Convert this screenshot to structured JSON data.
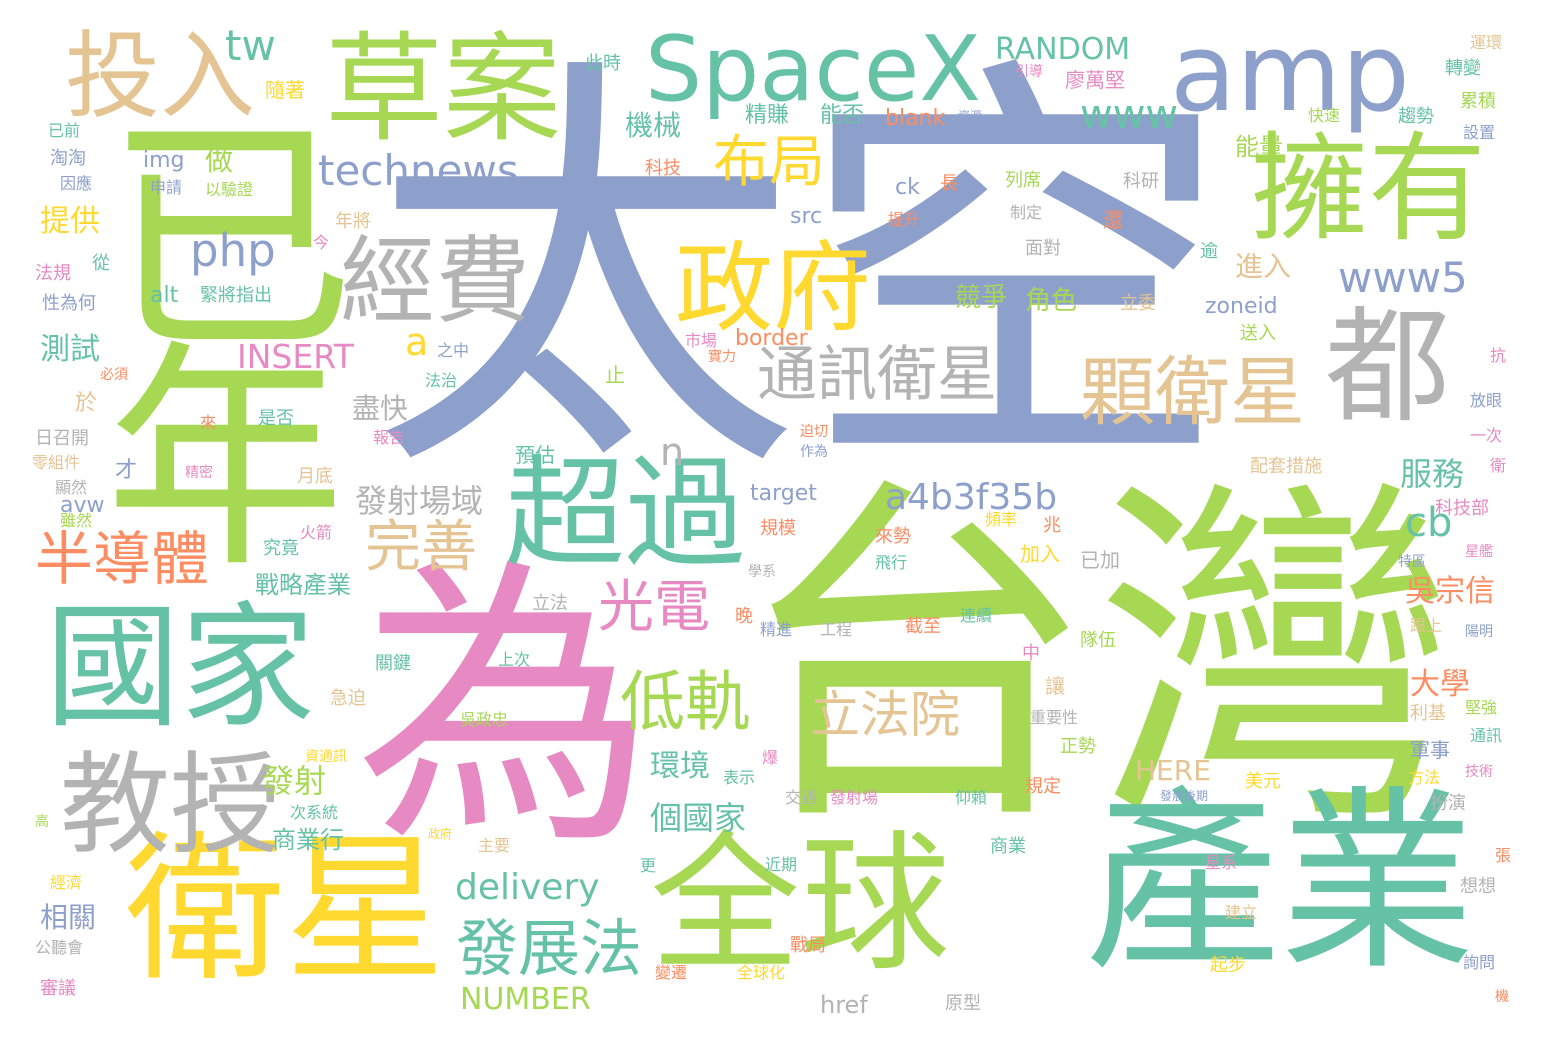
{
  "palette": {
    "green": "#a6d854",
    "teal": "#66c2a5",
    "blue": "#8da0cb",
    "pink": "#e78ac3",
    "yellow": "#ffd92f",
    "tan": "#e5c494",
    "gray": "#b3b3b3",
    "orange": "#fc8d62"
  },
  "words": [
    {
      "text": "太空",
      "color": "blue"
    },
    {
      "text": "台灣",
      "color": "green"
    },
    {
      "text": "已",
      "color": "green"
    },
    {
      "text": "年",
      "color": "green"
    },
    {
      "text": "為",
      "color": "pink"
    },
    {
      "text": "產業",
      "color": "teal"
    },
    {
      "text": "全球",
      "color": "green"
    },
    {
      "text": "衛星",
      "color": "yellow"
    },
    {
      "text": "國家",
      "color": "teal"
    },
    {
      "text": "amp",
      "color": "blue"
    },
    {
      "text": "草案",
      "color": "green"
    },
    {
      "text": "SpaceX",
      "color": "teal"
    },
    {
      "text": "擁有",
      "color": "green"
    },
    {
      "text": "都",
      "color": "gray"
    },
    {
      "text": "超過",
      "color": "teal"
    },
    {
      "text": "教授",
      "color": "gray"
    },
    {
      "text": "投入",
      "color": "tan"
    },
    {
      "text": "經費",
      "color": "gray"
    },
    {
      "text": "政府",
      "color": "yellow"
    },
    {
      "text": "顆衛星",
      "color": "tan"
    },
    {
      "text": "通訊衛星",
      "color": "gray"
    },
    {
      "text": "立法院",
      "color": "tan"
    },
    {
      "text": "低軌",
      "color": "green"
    },
    {
      "text": "發展法",
      "color": "teal"
    },
    {
      "text": "半導體",
      "color": "orange"
    },
    {
      "text": "完善",
      "color": "tan"
    },
    {
      "text": "光電",
      "color": "pink"
    },
    {
      "text": "布局",
      "color": "yellow"
    },
    {
      "text": "technews",
      "color": "blue"
    },
    {
      "text": "www5",
      "color": "blue"
    },
    {
      "text": "php",
      "color": "blue"
    },
    {
      "text": "a4b3f35b",
      "color": "blue"
    },
    {
      "text": "delivery",
      "color": "teal"
    },
    {
      "text": "www",
      "color": "teal"
    },
    {
      "text": "tw",
      "color": "teal"
    },
    {
      "text": "INSERT",
      "color": "pink"
    },
    {
      "text": "a",
      "color": "yellow"
    },
    {
      "text": "RANDOM",
      "color": "teal"
    },
    {
      "text": "NUMBER",
      "color": "green"
    },
    {
      "text": "HERE",
      "color": "tan"
    },
    {
      "text": "cb",
      "color": "teal"
    },
    {
      "text": "n",
      "color": "gray"
    },
    {
      "text": "zoneid",
      "color": "blue"
    },
    {
      "text": "個國家",
      "color": "teal"
    },
    {
      "text": "環境",
      "color": "teal"
    },
    {
      "text": "服務",
      "color": "teal"
    },
    {
      "text": "大學",
      "color": "orange"
    },
    {
      "text": "吳宗信",
      "color": "orange"
    },
    {
      "text": "進入",
      "color": "tan"
    },
    {
      "text": "發射場域",
      "color": "gray"
    },
    {
      "text": "發射",
      "color": "green"
    },
    {
      "text": "盡快",
      "color": "gray"
    },
    {
      "text": "提供",
      "color": "yellow"
    },
    {
      "text": "測試",
      "color": "teal"
    },
    {
      "text": "相關",
      "color": "blue"
    },
    {
      "text": "做",
      "color": "green"
    },
    {
      "text": "角色",
      "color": "green"
    },
    {
      "text": "競爭",
      "color": "green"
    },
    {
      "text": "商業行",
      "color": "teal"
    },
    {
      "text": "戰略產業",
      "color": "teal"
    },
    {
      "text": "機械",
      "color": "teal"
    },
    {
      "text": "能量",
      "color": "green"
    },
    {
      "text": "精賺",
      "color": "teal"
    },
    {
      "text": "能否",
      "color": "teal"
    },
    {
      "text": "blank",
      "color": "orange"
    },
    {
      "text": "img",
      "color": "blue"
    },
    {
      "text": "src",
      "color": "blue"
    },
    {
      "text": "alt",
      "color": "teal"
    },
    {
      "text": "ck",
      "color": "blue"
    },
    {
      "text": "border",
      "color": "orange"
    },
    {
      "text": "target",
      "color": "blue"
    },
    {
      "text": "avw",
      "color": "blue"
    },
    {
      "text": "href",
      "color": "gray"
    },
    {
      "text": "此時",
      "color": "teal"
    },
    {
      "text": "隨著",
      "color": "yellow"
    },
    {
      "text": "廖萬堅",
      "color": "pink"
    },
    {
      "text": "引導",
      "color": "pink"
    },
    {
      "text": "運環",
      "color": "tan"
    },
    {
      "text": "轉變",
      "color": "teal"
    },
    {
      "text": "累積",
      "color": "green"
    },
    {
      "text": "趨勢",
      "color": "teal"
    },
    {
      "text": "快速",
      "color": "green"
    },
    {
      "text": "設置",
      "color": "blue"
    },
    {
      "text": "已前",
      "color": "teal"
    },
    {
      "text": "淘淘",
      "color": "blue"
    },
    {
      "text": "因應",
      "color": "blue"
    },
    {
      "text": "申請",
      "color": "blue"
    },
    {
      "text": "以驗證",
      "color": "green"
    },
    {
      "text": "科技",
      "color": "orange"
    },
    {
      "text": "科研",
      "color": "gray"
    },
    {
      "text": "列席",
      "color": "green"
    },
    {
      "text": "提升",
      "color": "orange"
    },
    {
      "text": "制定",
      "color": "gray"
    },
    {
      "text": "還",
      "color": "orange"
    },
    {
      "text": "面對",
      "color": "gray"
    },
    {
      "text": "逾",
      "color": "teal"
    },
    {
      "text": "立委",
      "color": "tan"
    },
    {
      "text": "送入",
      "color": "green"
    },
    {
      "text": "年將",
      "color": "tan"
    },
    {
      "text": "今",
      "color": "pink"
    },
    {
      "text": "從",
      "color": "teal"
    },
    {
      "text": "法規",
      "color": "pink"
    },
    {
      "text": "性為何",
      "color": "blue"
    },
    {
      "text": "緊將指出",
      "color": "teal"
    },
    {
      "text": "市場",
      "color": "pink"
    },
    {
      "text": "實力",
      "color": "orange"
    },
    {
      "text": "之中",
      "color": "blue"
    },
    {
      "text": "必須",
      "color": "orange"
    },
    {
      "text": "法治",
      "color": "teal"
    },
    {
      "text": "止",
      "color": "green"
    },
    {
      "text": "於",
      "color": "tan"
    },
    {
      "text": "是否",
      "color": "teal"
    },
    {
      "text": "報告",
      "color": "pink"
    },
    {
      "text": "來",
      "color": "orange"
    },
    {
      "text": "預估",
      "color": "teal"
    },
    {
      "text": "迫切",
      "color": "orange"
    },
    {
      "text": "作為",
      "color": "blue"
    },
    {
      "text": "日召開",
      "color": "gray"
    },
    {
      "text": "零組件",
      "color": "tan"
    },
    {
      "text": "才",
      "color": "blue"
    },
    {
      "text": "精密",
      "color": "pink"
    },
    {
      "text": "月底",
      "color": "tan"
    },
    {
      "text": "顯然",
      "color": "gray"
    },
    {
      "text": "雖然",
      "color": "green"
    },
    {
      "text": "規模",
      "color": "orange"
    },
    {
      "text": "頻率",
      "color": "yellow"
    },
    {
      "text": "兆",
      "color": "orange"
    },
    {
      "text": "來勢",
      "color": "orange"
    },
    {
      "text": "火箭",
      "color": "pink"
    },
    {
      "text": "究竟",
      "color": "teal"
    },
    {
      "text": "加入",
      "color": "yellow"
    },
    {
      "text": "已加",
      "color": "gray"
    },
    {
      "text": "飛行",
      "color": "teal"
    },
    {
      "text": "學系",
      "color": "gray"
    },
    {
      "text": "立法",
      "color": "gray"
    },
    {
      "text": "截至",
      "color": "orange"
    },
    {
      "text": "連續",
      "color": "teal"
    },
    {
      "text": "晚",
      "color": "orange"
    },
    {
      "text": "精進",
      "color": "blue"
    },
    {
      "text": "工程",
      "color": "gray"
    },
    {
      "text": "跟上",
      "color": "tan"
    },
    {
      "text": "隊伍",
      "color": "green"
    },
    {
      "text": "關鍵",
      "color": "teal"
    },
    {
      "text": "上次",
      "color": "teal"
    },
    {
      "text": "中",
      "color": "pink"
    },
    {
      "text": "急迫",
      "color": "tan"
    },
    {
      "text": "吳政忠",
      "color": "green"
    },
    {
      "text": "讓",
      "color": "tan"
    },
    {
      "text": "重要性",
      "color": "gray"
    },
    {
      "text": "正勢",
      "color": "green"
    },
    {
      "text": "利基",
      "color": "tan"
    },
    {
      "text": "堅強",
      "color": "green"
    },
    {
      "text": "資通訊",
      "color": "yellow"
    },
    {
      "text": "爆",
      "color": "pink"
    },
    {
      "text": "軍事",
      "color": "blue"
    },
    {
      "text": "通訊",
      "color": "teal"
    },
    {
      "text": "表示",
      "color": "teal"
    },
    {
      "text": "技術",
      "color": "pink"
    },
    {
      "text": "美元",
      "color": "yellow"
    },
    {
      "text": "方法",
      "color": "yellow"
    },
    {
      "text": "扮演",
      "color": "gray"
    },
    {
      "text": "交通",
      "color": "gray"
    },
    {
      "text": "發射場",
      "color": "pink"
    },
    {
      "text": "仰賴",
      "color": "teal"
    },
    {
      "text": "規定",
      "color": "orange"
    },
    {
      "text": "發展後期",
      "color": "blue"
    },
    {
      "text": "次系統",
      "color": "teal"
    },
    {
      "text": "高",
      "color": "green"
    },
    {
      "text": "政府",
      "color": "yellow"
    },
    {
      "text": "主要",
      "color": "tan"
    },
    {
      "text": "商業",
      "color": "teal"
    },
    {
      "text": "近期",
      "color": "teal"
    },
    {
      "text": "更",
      "color": "teal"
    },
    {
      "text": "星系",
      "color": "pink"
    },
    {
      "text": "張",
      "color": "orange"
    },
    {
      "text": "經濟",
      "color": "yellow"
    },
    {
      "text": "戰局",
      "color": "orange"
    },
    {
      "text": "建立",
      "color": "tan"
    },
    {
      "text": "想想",
      "color": "gray"
    },
    {
      "text": "公聽會",
      "color": "gray"
    },
    {
      "text": "變遷",
      "color": "orange"
    },
    {
      "text": "全球化",
      "color": "yellow"
    },
    {
      "text": "起步",
      "color": "yellow"
    },
    {
      "text": "詢問",
      "color": "blue"
    },
    {
      "text": "審議",
      "color": "pink"
    },
    {
      "text": "原型",
      "color": "gray"
    },
    {
      "text": "機",
      "color": "orange"
    },
    {
      "text": "抗",
      "color": "pink"
    },
    {
      "text": "放眼",
      "color": "blue"
    },
    {
      "text": "一次",
      "color": "pink"
    },
    {
      "text": "衛",
      "color": "pink"
    },
    {
      "text": "科技部",
      "color": "pink"
    },
    {
      "text": "星艦",
      "color": "pink"
    },
    {
      "text": "特區",
      "color": "blue"
    },
    {
      "text": "陽明",
      "color": "blue"
    },
    {
      "text": "配套措施",
      "color": "tan"
    },
    {
      "text": "長",
      "color": "orange"
    },
    {
      "text": "資源",
      "color": "blue"
    }
  ]
}
